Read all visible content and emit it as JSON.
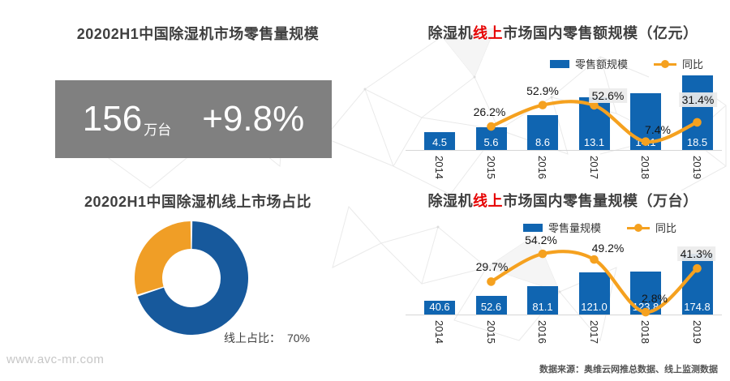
{
  "page": {
    "watermark": "www.avc-mr.com",
    "source": "数据来源：奥维云网推总数据、线上监测数据"
  },
  "summary": {
    "title": "20202H1中国除湿机市场零售量规模",
    "value": "156",
    "unit": "万台",
    "growth": "+9.8%",
    "box_color": "#808080"
  },
  "donut": {
    "title": "20202H1中国除湿机线上市场占比",
    "label": "线上占比：",
    "value_text": "70%",
    "segments": [
      {
        "name": "线上",
        "value": 70,
        "color": "#17599c"
      },
      {
        "name": "其他",
        "value": 30,
        "color": "#f09e26"
      }
    ]
  },
  "chart_data": [
    {
      "type": "bar+line",
      "title": {
        "prefix": "除湿机",
        "highlight": "线上",
        "suffix": "市场国内零售额规模（亿元）"
      },
      "legend": [
        {
          "name": "零售额规模",
          "marker": "bar"
        },
        {
          "name": "同比",
          "marker": "line"
        }
      ],
      "categories": [
        "2014",
        "2015",
        "2016",
        "2017",
        "2018",
        "2019"
      ],
      "bar_series": {
        "name": "零售额规模",
        "values": [
          4.5,
          5.6,
          8.6,
          13.1,
          14.1,
          18.5
        ],
        "labels": [
          "4.5",
          "5.6",
          "8.6",
          "13.1",
          "14.1",
          "18.5"
        ]
      },
      "line_series": {
        "name": "同比",
        "values_percent": [
          null,
          26.2,
          52.9,
          52.6,
          7.4,
          31.4
        ],
        "labels": [
          "26.2%",
          "52.9%",
          "52.6%",
          "7.4%",
          "31.4%"
        ]
      },
      "colors": {
        "bar": "#1065b1",
        "line": "#f5a11f"
      }
    },
    {
      "type": "bar+line",
      "title": {
        "prefix": "除湿机",
        "highlight": "线上",
        "suffix": "市场国内零售量规模（万台）"
      },
      "legend": [
        {
          "name": "零售量规模",
          "marker": "bar"
        },
        {
          "name": "同比",
          "marker": "line"
        }
      ],
      "categories": [
        "2014",
        "2015",
        "2016",
        "2017",
        "2018",
        "2019"
      ],
      "bar_series": {
        "name": "零售量规模",
        "values": [
          40.6,
          52.6,
          81.1,
          121.0,
          123.8,
          174.8
        ],
        "labels": [
          "40.6",
          "52.6",
          "81.1",
          "121.0",
          "123.8",
          "174.8"
        ]
      },
      "line_series": {
        "name": "同比",
        "values_percent": [
          null,
          29.7,
          54.2,
          49.2,
          2.8,
          41.3
        ],
        "labels": [
          "29.7%",
          "54.2%",
          "49.2%",
          "2.8%",
          "41.3%"
        ]
      },
      "colors": {
        "bar": "#1065b1",
        "line": "#f5a11f"
      }
    }
  ]
}
